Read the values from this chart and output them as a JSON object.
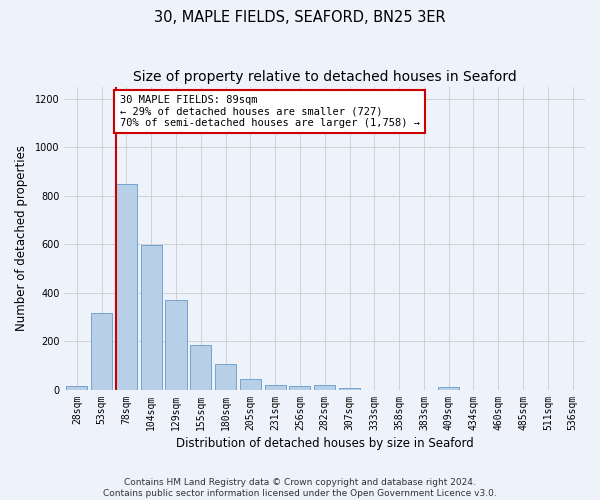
{
  "title": "30, MAPLE FIELDS, SEAFORD, BN25 3ER",
  "subtitle": "Size of property relative to detached houses in Seaford",
  "xlabel": "Distribution of detached houses by size in Seaford",
  "ylabel": "Number of detached properties",
  "categories": [
    "28sqm",
    "53sqm",
    "78sqm",
    "104sqm",
    "129sqm",
    "155sqm",
    "180sqm",
    "205sqm",
    "231sqm",
    "256sqm",
    "282sqm",
    "307sqm",
    "333sqm",
    "358sqm",
    "383sqm",
    "409sqm",
    "434sqm",
    "460sqm",
    "485sqm",
    "511sqm",
    "536sqm"
  ],
  "bar_values": [
    15,
    315,
    850,
    597,
    370,
    185,
    105,
    47,
    22,
    18,
    20,
    10,
    0,
    0,
    0,
    12,
    0,
    0,
    0,
    0,
    0
  ],
  "bar_color": "#b8cfe8",
  "bar_edge_color": "#6699cc",
  "annotation_box_text": "30 MAPLE FIELDS: 89sqm\n← 29% of detached houses are smaller (727)\n70% of semi-detached houses are larger (1,758) →",
  "annotation_box_color": "#ffffff",
  "annotation_box_edge_color": "#cc0000",
  "red_line_color": "#cc0000",
  "ylim": [
    0,
    1250
  ],
  "yticks": [
    0,
    200,
    400,
    600,
    800,
    1000,
    1200
  ],
  "grid_color": "#cccccc",
  "bg_color": "#eef2fa",
  "footer_text": "Contains HM Land Registry data © Crown copyright and database right 2024.\nContains public sector information licensed under the Open Government Licence v3.0.",
  "title_fontsize": 10.5,
  "xlabel_fontsize": 8.5,
  "ylabel_fontsize": 8.5,
  "tick_fontsize": 7,
  "annotation_fontsize": 7.5,
  "footer_fontsize": 6.5
}
